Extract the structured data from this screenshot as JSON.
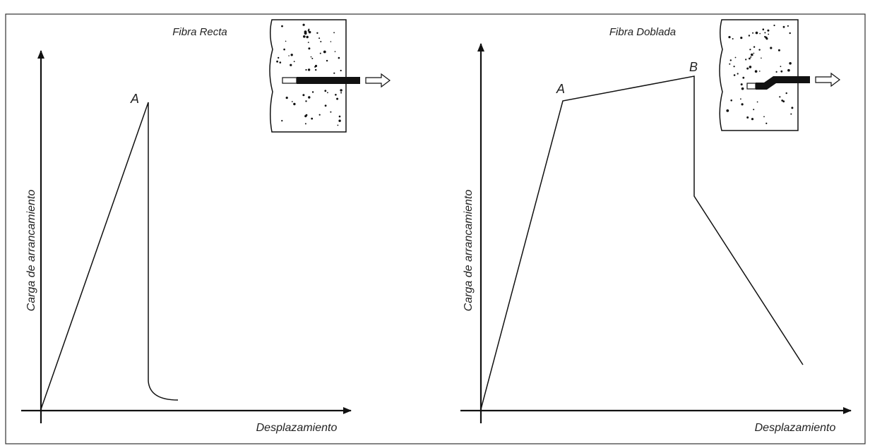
{
  "panels": [
    {
      "title": "Fibra Recta",
      "y_label": "Carga de arrancamiento",
      "x_label": "Desplazamiento",
      "points": [
        "A"
      ]
    },
    {
      "title": "Fibra Doblada",
      "y_label": "Carga de arrancamiento",
      "x_label": "Desplazamiento",
      "points": [
        "A",
        "B"
      ]
    }
  ]
}
